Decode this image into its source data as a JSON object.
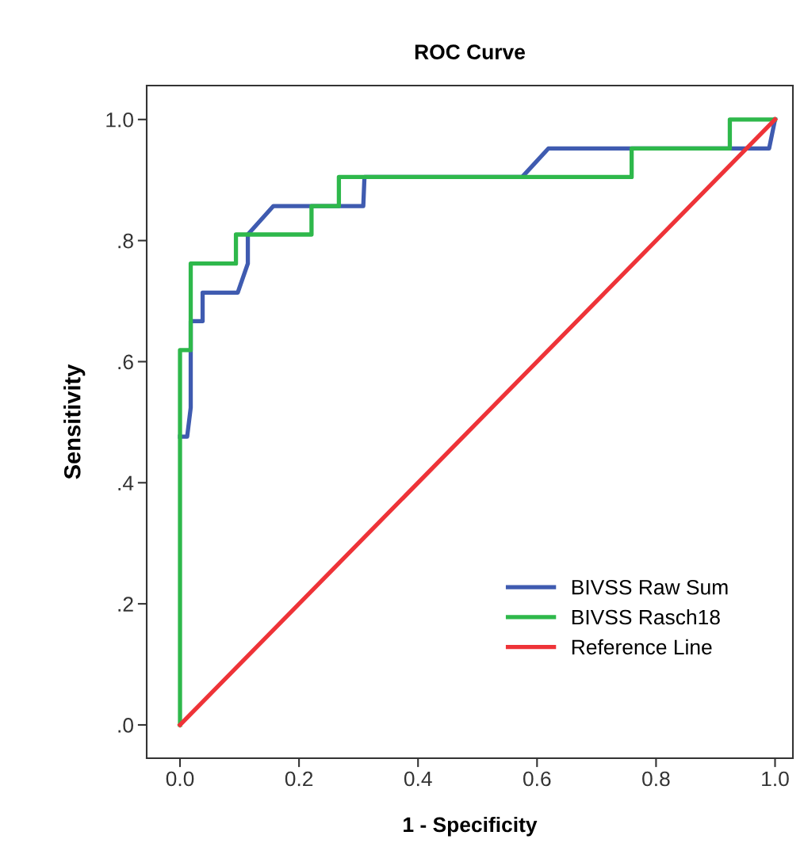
{
  "chart_data": {
    "type": "line",
    "title": "ROC Curve",
    "xlabel": "1 - Specificity",
    "ylabel": "Sensitivity",
    "xlim": [
      -0.056,
      1.03
    ],
    "ylim": [
      -0.055,
      1.056
    ],
    "xticks": [
      {
        "value": 0,
        "label": "0.0"
      },
      0.2,
      0.4,
      0.6,
      0.8,
      {
        "value": 1,
        "label": "1.0"
      }
    ],
    "yticks": [
      {
        "value": 0,
        "label": ".0"
      },
      {
        "value": 0.2,
        "label": ".2"
      },
      {
        "value": 0.4,
        "label": ".4"
      },
      {
        "value": 0.6,
        "label": ".6"
      },
      {
        "value": 0.8,
        "label": ".8"
      },
      {
        "value": 1,
        "label": "1.0"
      }
    ],
    "grid": false,
    "legend": "bottom right",
    "marker": "none",
    "line_style": "solid",
    "series": [
      {
        "name": "BIVSS Raw Sum",
        "color": "#3f5bb0",
        "x": [
          0,
          0.012,
          0.018,
          0.018,
          0.038,
          0.038,
          0.097,
          0.114,
          0.114,
          0.157,
          0.308,
          0.31,
          0.575,
          0.619,
          0.99,
          1.0
        ],
        "values": [
          0.476,
          0.476,
          0.524,
          0.667,
          0.667,
          0.714,
          0.714,
          0.762,
          0.81,
          0.857,
          0.857,
          0.905,
          0.905,
          0.952,
          0.952,
          1.0
        ]
      },
      {
        "name": "BIVSS Rasch18",
        "color": "#2eb84b",
        "x": [
          0,
          0,
          0.018,
          0.018,
          0.094,
          0.094,
          0.221,
          0.221,
          0.267,
          0.267,
          0.759,
          0.759,
          0.924,
          0.924,
          1.0
        ],
        "values": [
          0,
          0.619,
          0.619,
          0.762,
          0.762,
          0.81,
          0.81,
          0.857,
          0.857,
          0.905,
          0.905,
          0.952,
          0.952,
          1.0,
          1.0
        ]
      },
      {
        "name": "Reference Line",
        "color": "#ee3338",
        "x": [
          0,
          1
        ],
        "values": [
          0,
          1
        ]
      }
    ]
  }
}
